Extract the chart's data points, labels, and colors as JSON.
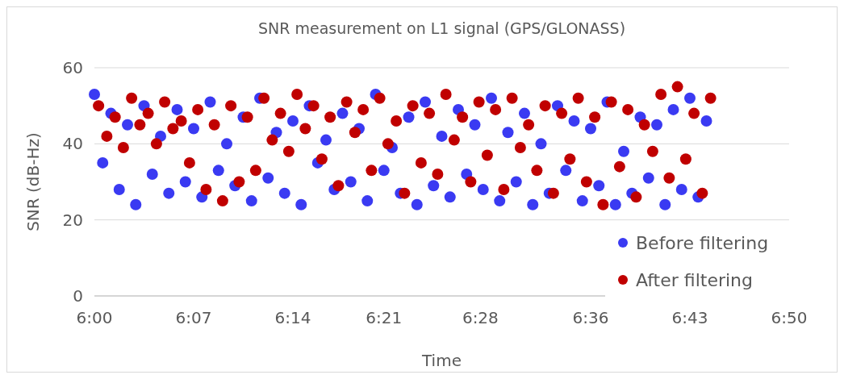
{
  "chart_data": {
    "type": "scatter",
    "title": "SNR measurement on L1 signal (GPS/GLONASS)",
    "xlabel": "Time",
    "ylabel": "SNR (dB-Hz)",
    "xlim": [
      6,
      6.84
    ],
    "xticks": [
      {
        "value": 6,
        "label": "6:00"
      },
      {
        "value": 6.12,
        "label": "6:07"
      },
      {
        "value": 6.24,
        "label": "6:14"
      },
      {
        "value": 6.35,
        "label": "6:21"
      },
      {
        "value": 6.4667,
        "label": "6:28"
      },
      {
        "value": 6.6,
        "label": "6:36"
      },
      {
        "value": 6.72,
        "label": "6:43"
      },
      {
        "value": 6.84,
        "label": "6:50"
      }
    ],
    "ylim": [
      0,
      60
    ],
    "yticks": [
      0,
      20,
      40,
      60
    ],
    "grid": "y",
    "legend": "bottom right",
    "marker": "circle",
    "series": [
      {
        "name": "Before filtering",
        "color": "#3a3af2",
        "x": [
          6,
          6.01,
          6.02,
          6.03,
          6.04,
          6.05,
          6.06,
          6.07,
          6.08,
          6.09,
          6.1,
          6.11,
          6.12,
          6.13,
          6.14,
          6.15,
          6.16,
          6.17,
          6.18,
          6.19,
          6.2,
          6.21,
          6.22,
          6.23,
          6.24,
          6.25,
          6.26,
          6.27,
          6.28,
          6.29,
          6.3,
          6.31,
          6.32,
          6.33,
          6.34,
          6.35,
          6.36,
          6.37,
          6.38,
          6.39,
          6.4,
          6.41,
          6.42,
          6.43,
          6.44,
          6.45,
          6.46,
          6.47,
          6.48,
          6.49,
          6.5,
          6.51,
          6.52,
          6.53,
          6.54,
          6.55,
          6.56,
          6.57,
          6.58,
          6.59,
          6.6,
          6.61,
          6.62,
          6.63,
          6.64,
          6.65,
          6.66,
          6.67,
          6.68,
          6.69,
          6.7,
          6.71,
          6.72,
          6.73,
          6.74
        ],
        "values": [
          53,
          35,
          48,
          28,
          45,
          24,
          50,
          32,
          42,
          27,
          49,
          30,
          44,
          26,
          51,
          33,
          40,
          29,
          47,
          25,
          52,
          31,
          43,
          27,
          46,
          24,
          50,
          35,
          41,
          28,
          48,
          30,
          44,
          25,
          53,
          33,
          39,
          27,
          47,
          24,
          51,
          29,
          42,
          26,
          49,
          32,
          45,
          28,
          52,
          25,
          43,
          30,
          48,
          24,
          40,
          27,
          50,
          33,
          46,
          25,
          44,
          29,
          51,
          24,
          38,
          27,
          47,
          31,
          45,
          24,
          49,
          28,
          52,
          26,
          46
        ]
      },
      {
        "name": "After filtering",
        "color": "#c00000",
        "x": [
          6.005,
          6.015,
          6.025,
          6.035,
          6.045,
          6.055,
          6.065,
          6.075,
          6.085,
          6.095,
          6.105,
          6.115,
          6.125,
          6.135,
          6.145,
          6.155,
          6.165,
          6.175,
          6.185,
          6.195,
          6.205,
          6.215,
          6.225,
          6.235,
          6.245,
          6.255,
          6.265,
          6.275,
          6.285,
          6.295,
          6.305,
          6.315,
          6.325,
          6.335,
          6.345,
          6.355,
          6.365,
          6.375,
          6.385,
          6.395,
          6.405,
          6.415,
          6.425,
          6.435,
          6.445,
          6.455,
          6.465,
          6.475,
          6.485,
          6.495,
          6.505,
          6.515,
          6.525,
          6.535,
          6.545,
          6.555,
          6.565,
          6.575,
          6.585,
          6.595,
          6.605,
          6.615,
          6.625,
          6.635,
          6.645,
          6.655,
          6.665,
          6.675,
          6.685,
          6.695,
          6.705,
          6.715,
          6.725,
          6.735,
          6.745
        ],
        "values": [
          50,
          42,
          47,
          39,
          52,
          45,
          48,
          40,
          51,
          44,
          46,
          35,
          49,
          28,
          45,
          25,
          50,
          30,
          47,
          33,
          52,
          41,
          48,
          38,
          53,
          44,
          50,
          36,
          47,
          29,
          51,
          43,
          49,
          33,
          52,
          40,
          46,
          27,
          50,
          35,
          48,
          32,
          53,
          41,
          47,
          30,
          51,
          37,
          49,
          28,
          52,
          39,
          45,
          33,
          50,
          27,
          48,
          36,
          52,
          30,
          47,
          24,
          51,
          34,
          49,
          26,
          45,
          38,
          53,
          31,
          55,
          36,
          48,
          27,
          52
        ]
      }
    ]
  }
}
